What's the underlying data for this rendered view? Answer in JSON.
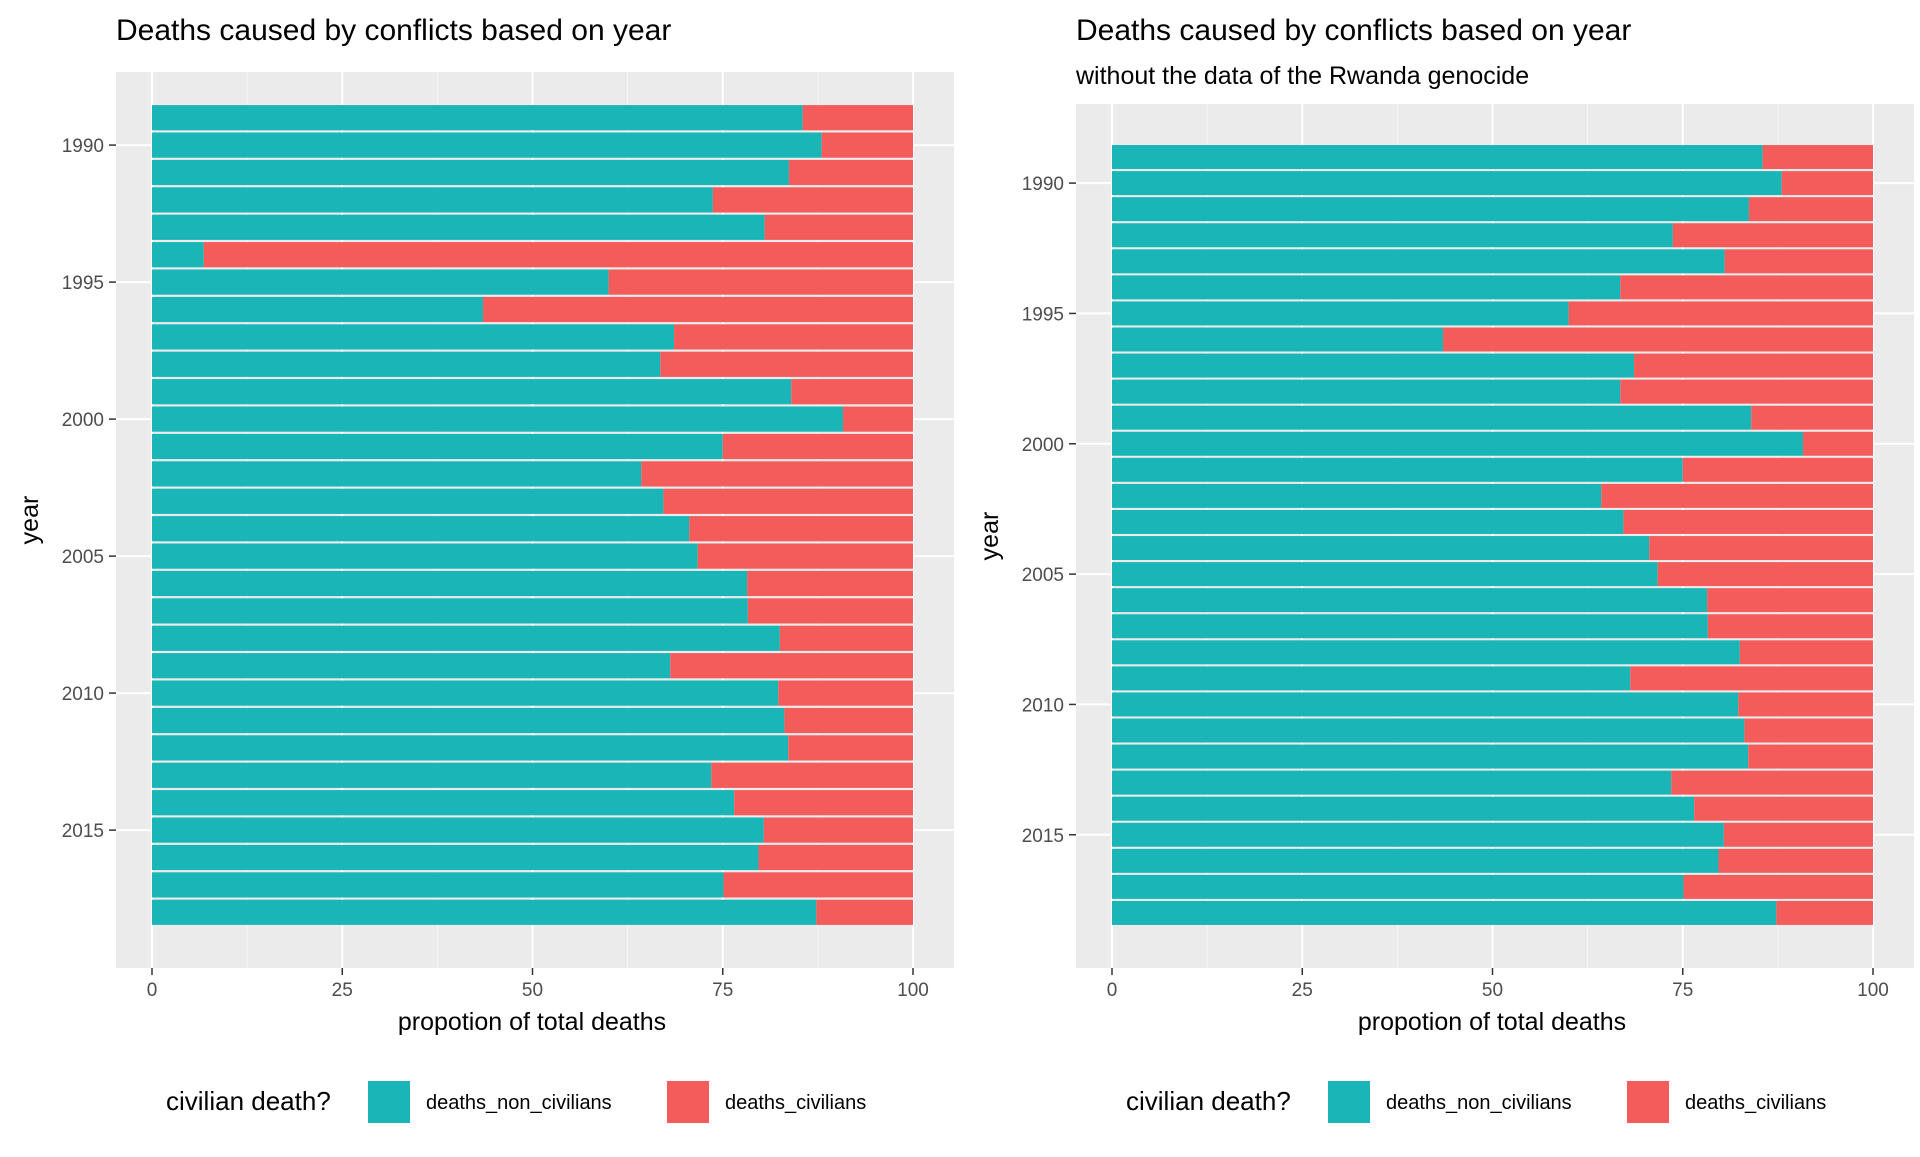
{
  "chart_data": [
    {
      "type": "bar",
      "orientation": "horizontal",
      "stacked": true,
      "title": "Deaths caused by conflicts based on year",
      "subtitle": "",
      "xlabel": "propotion of total deaths",
      "ylabel": "year",
      "xlim": [
        0,
        100
      ],
      "ylim": [
        1989,
        2018
      ],
      "x_ticks": [
        0,
        25,
        50,
        75,
        100
      ],
      "y_ticks": [
        1990,
        1995,
        2000,
        2005,
        2010,
        2015
      ],
      "grid": true,
      "legend_position": "bottom",
      "legend_title": "civilian death?",
      "categories": [
        1989,
        1990,
        1991,
        1992,
        1993,
        1994,
        1995,
        1996,
        1997,
        1998,
        1999,
        2000,
        2001,
        2002,
        2003,
        2004,
        2005,
        2006,
        2007,
        2008,
        2009,
        2010,
        2011,
        2012,
        2013,
        2014,
        2015,
        2016,
        2017,
        2018
      ],
      "series": [
        {
          "name": "deaths_non_civilians",
          "color": "#19B5B7",
          "values": [
            85.5,
            88.0,
            83.7,
            73.7,
            80.5,
            6.8,
            60.0,
            43.5,
            68.6,
            66.8,
            84.0,
            90.8,
            75.0,
            64.3,
            67.2,
            70.6,
            71.7,
            78.2,
            78.3,
            82.5,
            68.1,
            82.3,
            83.1,
            83.6,
            73.5,
            76.5,
            80.4,
            79.7,
            75.1,
            87.3
          ]
        },
        {
          "name": "deaths_civilians",
          "color": "#F45C5C",
          "values": [
            14.5,
            12.0,
            16.3,
            26.3,
            19.5,
            93.2,
            40.0,
            56.5,
            31.4,
            33.2,
            16.0,
            9.2,
            25.0,
            35.7,
            32.8,
            29.4,
            28.3,
            21.8,
            21.7,
            17.5,
            31.9,
            17.7,
            16.9,
            16.4,
            26.5,
            23.5,
            19.6,
            20.3,
            24.9,
            12.7
          ]
        }
      ]
    },
    {
      "type": "bar",
      "orientation": "horizontal",
      "stacked": true,
      "title": "Deaths caused by conflicts based on year",
      "subtitle": "without the data of the Rwanda genocide",
      "xlabel": "propotion of total deaths",
      "ylabel": "year",
      "xlim": [
        0,
        100
      ],
      "ylim": [
        1989,
        2018
      ],
      "x_ticks": [
        0,
        25,
        50,
        75,
        100
      ],
      "y_ticks": [
        1990,
        1995,
        2000,
        2005,
        2010,
        2015
      ],
      "grid": true,
      "legend_position": "bottom",
      "legend_title": "civilian death?",
      "categories": [
        1989,
        1990,
        1991,
        1992,
        1993,
        1994,
        1995,
        1996,
        1997,
        1998,
        1999,
        2000,
        2001,
        2002,
        2003,
        2004,
        2005,
        2006,
        2007,
        2008,
        2009,
        2010,
        2011,
        2012,
        2013,
        2014,
        2015,
        2016,
        2017,
        2018
      ],
      "series": [
        {
          "name": "deaths_non_civilians",
          "color": "#19B5B7",
          "values": [
            85.5,
            88.0,
            83.7,
            73.7,
            80.5,
            66.8,
            60.0,
            43.5,
            68.6,
            66.8,
            84.0,
            90.8,
            75.0,
            64.3,
            67.2,
            70.6,
            71.7,
            78.2,
            78.3,
            82.5,
            68.1,
            82.3,
            83.1,
            83.6,
            73.5,
            76.5,
            80.4,
            79.7,
            75.1,
            87.3
          ]
        },
        {
          "name": "deaths_civilians",
          "color": "#F45C5C",
          "values": [
            14.5,
            12.0,
            16.3,
            26.3,
            19.5,
            33.2,
            40.0,
            56.5,
            31.4,
            33.2,
            16.0,
            9.2,
            25.0,
            35.7,
            32.8,
            29.4,
            28.3,
            21.8,
            21.7,
            17.5,
            31.9,
            17.7,
            16.9,
            16.4,
            26.5,
            23.5,
            19.6,
            20.3,
            24.9,
            12.7
          ]
        }
      ]
    }
  ]
}
